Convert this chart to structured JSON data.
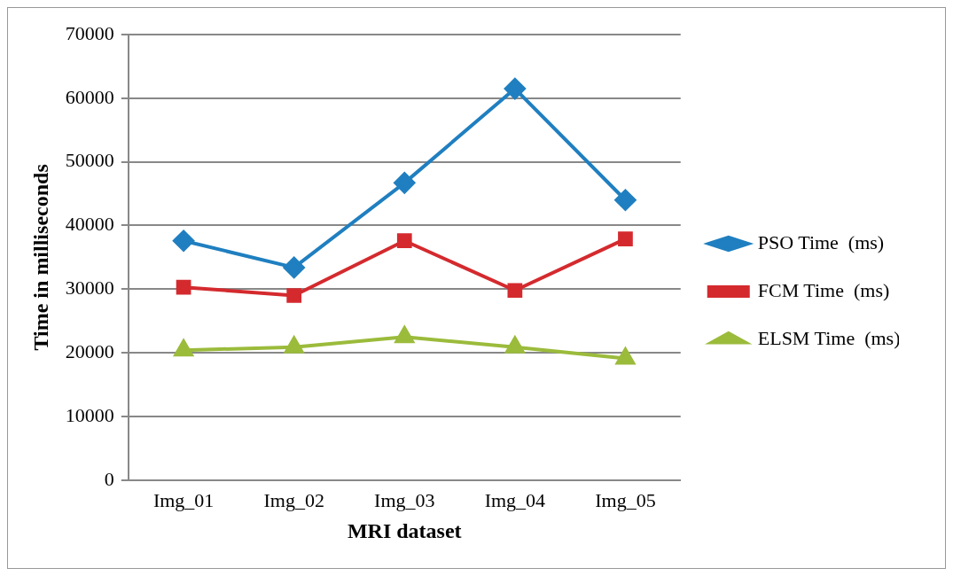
{
  "chart_data": {
    "type": "line",
    "xlabel": "MRI dataset",
    "ylabel": "Time in milliseconds",
    "categories": [
      "Img_01",
      "Img_02",
      "Img_03",
      "Img_04",
      "Img_05"
    ],
    "series": [
      {
        "name": "PSO Time  (ms)",
        "color": "#1f7fc0",
        "marker": "diamond",
        "values": [
          37600,
          33400,
          46700,
          61500,
          44000
        ]
      },
      {
        "name": "FCM Time  (ms)",
        "color": "#d42a2e",
        "marker": "square",
        "values": [
          30300,
          29000,
          37600,
          29800,
          37900
        ]
      },
      {
        "name": "ELSM Time  (ms)",
        "color": "#9bbb3b",
        "marker": "triangle",
        "values": [
          20400,
          20900,
          22500,
          20900,
          19100
        ]
      }
    ],
    "ylim": [
      0,
      70000
    ],
    "yticks": [
      0,
      10000,
      20000,
      30000,
      40000,
      50000,
      60000,
      70000
    ],
    "grid": "y",
    "legend": "right",
    "line_style": "solid"
  }
}
